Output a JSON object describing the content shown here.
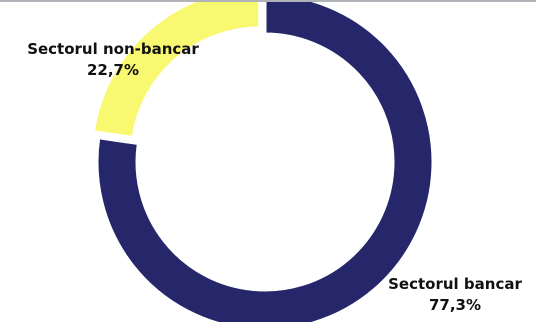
{
  "chart_data": {
    "type": "pie",
    "donut": true,
    "categories": [
      "Sectorul bancar",
      "Sectorul non-bancar"
    ],
    "values": [
      77.3,
      22.7
    ],
    "value_labels": [
      "77,3%",
      "22,7%"
    ],
    "colors": [
      "#26276b",
      "#f9f871"
    ],
    "exploded": [
      "Sectorul non-bancar"
    ],
    "legend": "none"
  }
}
